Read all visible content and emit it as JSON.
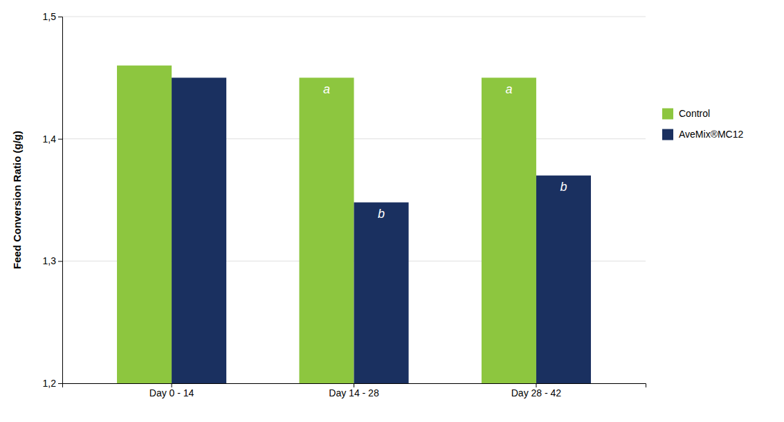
{
  "chart_data": {
    "type": "bar",
    "categories": [
      "Day 0 - 14",
      "Day 14 - 28",
      "Day 28 - 42"
    ],
    "series": [
      {
        "name": "Control",
        "color": "#8DC63F",
        "values": [
          1.46,
          1.45,
          1.45
        ],
        "annotations": [
          null,
          "a",
          "a"
        ]
      },
      {
        "name": "AveMix®MC12",
        "color": "#1A3060",
        "values": [
          1.45,
          1.348,
          1.37
        ],
        "annotations": [
          null,
          "b",
          "b"
        ]
      }
    ],
    "ylabel": "Feed Conversion Ratio (g/g)",
    "ylim": [
      1.2,
      1.5
    ],
    "yticks": [
      {
        "value": 1.2,
        "label": "1,2"
      },
      {
        "value": 1.3,
        "label": "1,3"
      },
      {
        "value": 1.4,
        "label": "1,4"
      },
      {
        "value": 1.5,
        "label": "1,5"
      }
    ],
    "grid": true,
    "legend": "right"
  }
}
